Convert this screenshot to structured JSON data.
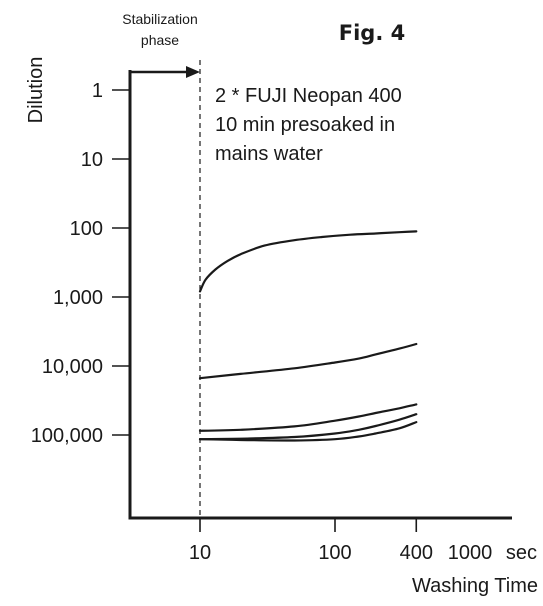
{
  "chart_data": {
    "type": "line",
    "figure_label": "Fig. 4",
    "annotation_lines": [
      "2 * FUJI Neopan 400",
      "10 min presoaked in",
      "mains water"
    ],
    "phase_label_lines": [
      "Stabilization",
      "phase"
    ],
    "ylabel": "Dilution",
    "xlabel": "Washing Time",
    "x_unit": "sec",
    "x_scale": "log",
    "y_scale": "log",
    "y_inverted": true,
    "xlim": [
      1,
      1000
    ],
    "ylim": [
      1,
      100000
    ],
    "x_ticks": [
      {
        "value": 10,
        "label": "10"
      },
      {
        "value": 100,
        "label": "100"
      },
      {
        "value": 400,
        "label": "400"
      },
      {
        "value": 1000,
        "label": "1000"
      }
    ],
    "y_ticks": [
      {
        "value": 1,
        "label": "1"
      },
      {
        "value": 10,
        "label": "10"
      },
      {
        "value": 100,
        "label": "100"
      },
      {
        "value": 1000,
        "label": "1,000"
      },
      {
        "value": 10000,
        "label": "10,000"
      },
      {
        "value": 100000,
        "label": "100,000"
      }
    ],
    "stabilization_end": 10,
    "grid": false,
    "legend": "none",
    "series": [
      {
        "x": [
          10,
          11,
          13,
          16,
          20,
          30,
          50,
          80,
          130,
          200,
          300,
          400
        ],
        "y": [
          830,
          560,
          400,
          300,
          240,
          180,
          150,
          135,
          125,
          120,
          115,
          112
        ]
      },
      {
        "x": [
          10,
          20,
          50,
          100,
          150,
          200,
          300,
          400
        ],
        "y": [
          15000,
          13000,
          10800,
          8900,
          7800,
          6800,
          5600,
          4800
        ]
      },
      {
        "x": [
          10,
          20,
          50,
          100,
          150,
          200,
          300,
          400
        ],
        "y": [
          87000,
          84000,
          75000,
          62000,
          54000,
          48000,
          41000,
          36000
        ]
      },
      {
        "x": [
          10,
          20,
          50,
          100,
          150,
          200,
          300,
          400
        ],
        "y": [
          115000,
          113000,
          107000,
          95000,
          84000,
          74000,
          60000,
          50000
        ]
      },
      {
        "x": [
          10,
          20,
          50,
          100,
          150,
          200,
          300,
          400
        ],
        "y": [
          115000,
          118000,
          120000,
          115000,
          105000,
          95000,
          80000,
          65000
        ]
      }
    ]
  }
}
